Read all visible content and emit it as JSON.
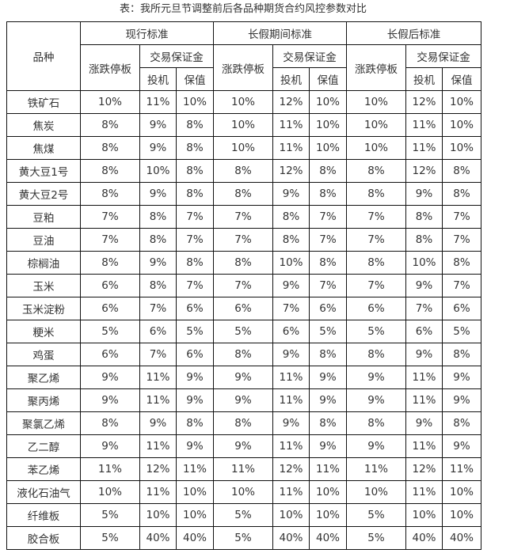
{
  "title": "表：我所元旦节调整前后各品种期货合约风控参数对比",
  "header": {
    "variety": "品种",
    "groups": [
      "现行标准",
      "长假期间标准",
      "长假后标准"
    ],
    "limit": "涨跌停板",
    "margin": "交易保证金",
    "spec": "投机",
    "hedge": "保值"
  },
  "rows": [
    [
      "铁矿石",
      "10%",
      "11%",
      "10%",
      "10%",
      "12%",
      "10%",
      "10%",
      "12%",
      "10%"
    ],
    [
      "焦炭",
      "8%",
      "9%",
      "8%",
      "10%",
      "11%",
      "10%",
      "10%",
      "11%",
      "10%"
    ],
    [
      "焦煤",
      "8%",
      "9%",
      "8%",
      "10%",
      "11%",
      "10%",
      "10%",
      "11%",
      "10%"
    ],
    [
      "黄大豆1号",
      "8%",
      "10%",
      "8%",
      "8%",
      "12%",
      "8%",
      "8%",
      "12%",
      "8%"
    ],
    [
      "黄大豆2号",
      "8%",
      "9%",
      "8%",
      "8%",
      "9%",
      "8%",
      "8%",
      "9%",
      "8%"
    ],
    [
      "豆粕",
      "7%",
      "8%",
      "7%",
      "7%",
      "8%",
      "7%",
      "7%",
      "8%",
      "7%"
    ],
    [
      "豆油",
      "7%",
      "8%",
      "7%",
      "7%",
      "8%",
      "7%",
      "7%",
      "8%",
      "7%"
    ],
    [
      "棕榈油",
      "8%",
      "9%",
      "8%",
      "8%",
      "10%",
      "8%",
      "8%",
      "10%",
      "8%"
    ],
    [
      "玉米",
      "6%",
      "8%",
      "7%",
      "7%",
      "9%",
      "7%",
      "7%",
      "9%",
      "7%"
    ],
    [
      "玉米淀粉",
      "6%",
      "7%",
      "6%",
      "6%",
      "7%",
      "6%",
      "6%",
      "7%",
      "6%"
    ],
    [
      "粳米",
      "5%",
      "6%",
      "5%",
      "5%",
      "6%",
      "5%",
      "5%",
      "6%",
      "5%"
    ],
    [
      "鸡蛋",
      "6%",
      "7%",
      "6%",
      "8%",
      "9%",
      "8%",
      "8%",
      "9%",
      "8%"
    ],
    [
      "聚乙烯",
      "9%",
      "11%",
      "9%",
      "9%",
      "11%",
      "9%",
      "9%",
      "11%",
      "9%"
    ],
    [
      "聚丙烯",
      "9%",
      "11%",
      "9%",
      "9%",
      "11%",
      "9%",
      "9%",
      "11%",
      "9%"
    ],
    [
      "聚氯乙烯",
      "8%",
      "9%",
      "8%",
      "8%",
      "9%",
      "8%",
      "8%",
      "9%",
      "8%"
    ],
    [
      "乙二醇",
      "9%",
      "11%",
      "9%",
      "9%",
      "11%",
      "9%",
      "9%",
      "11%",
      "9%"
    ],
    [
      "苯乙烯",
      "11%",
      "12%",
      "11%",
      "11%",
      "12%",
      "11%",
      "11%",
      "12%",
      "11%"
    ],
    [
      "液化石油气",
      "10%",
      "11%",
      "10%",
      "10%",
      "11%",
      "10%",
      "10%",
      "11%",
      "10%"
    ],
    [
      "纤维板",
      "5%",
      "10%",
      "10%",
      "5%",
      "10%",
      "10%",
      "5%",
      "10%",
      "10%"
    ],
    [
      "胶合板",
      "5%",
      "40%",
      "40%",
      "5%",
      "40%",
      "40%",
      "5%",
      "40%",
      "40%"
    ]
  ]
}
